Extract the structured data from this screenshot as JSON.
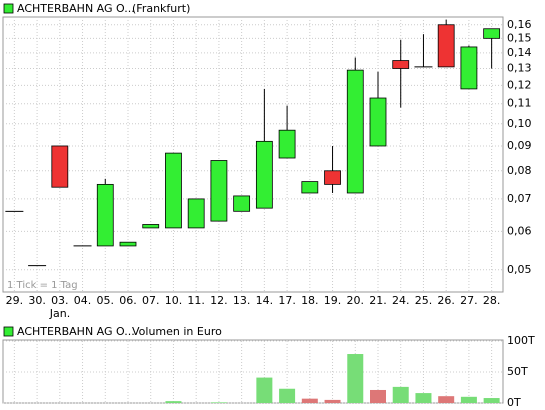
{
  "chart_data": [
    {
      "type": "candlestick",
      "title": "ACHTERBAHN AG O...",
      "subtitle": "(Frankfurt)",
      "annotation": "1 Tick = 1 Tag",
      "month_label": "Jan.",
      "categories": [
        "29.",
        "30.",
        "03.",
        "04.",
        "05.",
        "06.",
        "07.",
        "10.",
        "11.",
        "12.",
        "13.",
        "14.",
        "17.",
        "18.",
        "19.",
        "20.",
        "21.",
        "24.",
        "25.",
        "26.",
        "27.",
        "28."
      ],
      "open": [
        0.066,
        0.051,
        0.09,
        0.056,
        0.056,
        0.056,
        0.061,
        0.061,
        0.061,
        0.063,
        0.066,
        0.067,
        0.085,
        0.072,
        0.08,
        0.072,
        0.09,
        0.135,
        0.131,
        0.16,
        0.118,
        0.15
      ],
      "high": [
        0.066,
        0.051,
        0.09,
        0.056,
        0.077,
        0.057,
        0.062,
        0.087,
        0.07,
        0.084,
        0.071,
        0.118,
        0.109,
        0.076,
        0.09,
        0.137,
        0.128,
        0.149,
        0.153,
        0.164,
        0.145,
        0.157
      ],
      "low": [
        0.066,
        0.051,
        0.074,
        0.056,
        0.056,
        0.056,
        0.061,
        0.061,
        0.061,
        0.063,
        0.066,
        0.067,
        0.085,
        0.072,
        0.072,
        0.072,
        0.09,
        0.108,
        0.131,
        0.131,
        0.118,
        0.13
      ],
      "close": [
        0.066,
        0.051,
        0.074,
        0.056,
        0.075,
        0.057,
        0.062,
        0.087,
        0.07,
        0.084,
        0.071,
        0.092,
        0.097,
        0.076,
        0.075,
        0.129,
        0.113,
        0.13,
        0.131,
        0.131,
        0.144,
        0.157
      ],
      "up_color": "#33ee33",
      "down_color": "#ee3333",
      "ylim": [
        0.045,
        0.166
      ],
      "log_scale": true,
      "grid": true,
      "yticks": [
        {
          "value": 0.05,
          "label": "0,05"
        },
        {
          "value": 0.06,
          "label": "0,06"
        },
        {
          "value": 0.07,
          "label": "0,07"
        },
        {
          "value": 0.08,
          "label": "0,08"
        },
        {
          "value": 0.09,
          "label": "0,09"
        },
        {
          "value": 0.1,
          "label": "0,10"
        },
        {
          "value": 0.11,
          "label": "0,11"
        },
        {
          "value": 0.12,
          "label": "0,12"
        },
        {
          "value": 0.13,
          "label": "0,13"
        },
        {
          "value": 0.14,
          "label": "0,14"
        },
        {
          "value": 0.15,
          "label": "0,15"
        },
        {
          "value": 0.16,
          "label": "0,16"
        }
      ]
    },
    {
      "type": "bar",
      "title": "ACHTERBAHN AG O...",
      "subtitle": "Volumen in Euro",
      "values": [
        0,
        0,
        0,
        0,
        0,
        0,
        0,
        3,
        0,
        1,
        0,
        41,
        23,
        7,
        5,
        79,
        21,
        26,
        16,
        11,
        10,
        8
      ],
      "colors": [
        "#77dd77",
        "#77dd77",
        "#dd7777",
        "#77dd77",
        "#77dd77",
        "#77dd77",
        "#77dd77",
        "#77dd77",
        "#77dd77",
        "#77dd77",
        "#77dd77",
        "#77dd77",
        "#77dd77",
        "#dd7777",
        "#dd7777",
        "#77dd77",
        "#dd7777",
        "#77dd77",
        "#77dd77",
        "#dd7777",
        "#77dd77",
        "#77dd77"
      ],
      "ylim": [
        0,
        100
      ],
      "grid": true,
      "yticks": [
        {
          "value": 0,
          "label": "0T"
        },
        {
          "value": 50,
          "label": "50T"
        },
        {
          "value": 100,
          "label": "100T"
        }
      ]
    }
  ]
}
